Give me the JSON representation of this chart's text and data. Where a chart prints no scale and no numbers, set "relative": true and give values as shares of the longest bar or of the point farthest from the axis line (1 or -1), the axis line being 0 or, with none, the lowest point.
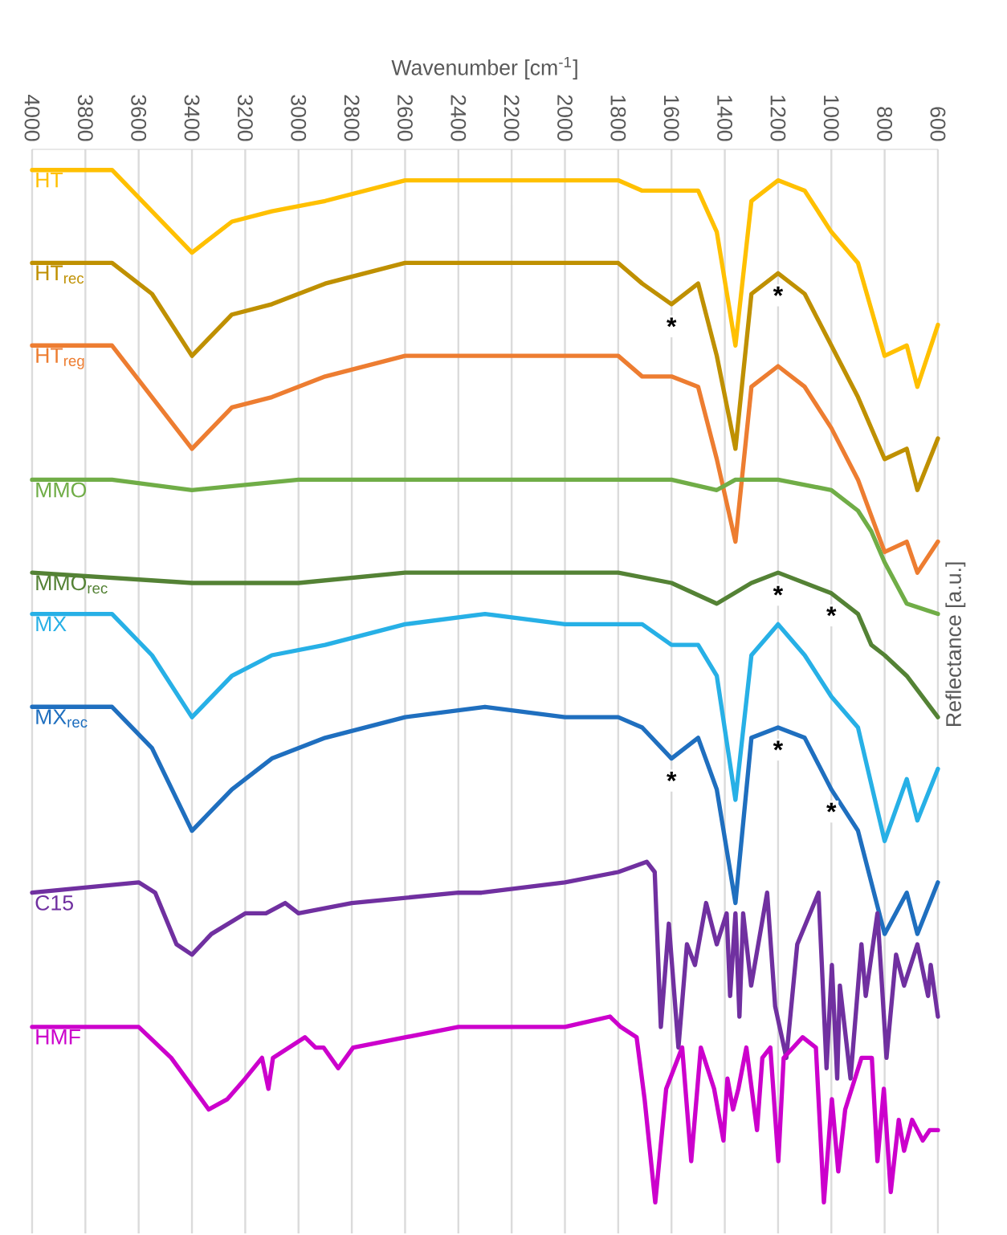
{
  "chart_data": {
    "type": "line",
    "relative": true,
    "xlabel": "Wavenumber [cm$^{-1}$]",
    "ylabel": "Reflectance [a.u.]",
    "xlim": [
      4000,
      600
    ],
    "xticks": [
      4000,
      3800,
      3600,
      3400,
      3200,
      3000,
      2800,
      2600,
      2400,
      2200,
      2000,
      1800,
      1600,
      1400,
      1200,
      1000,
      800,
      600
    ],
    "grid": "x",
    "x": [
      4000,
      3700,
      3550,
      3400,
      3250,
      3100,
      2900,
      2600,
      2300,
      2000,
      1800,
      1710,
      1600,
      1500,
      1430,
      1360,
      1300,
      1200,
      1100,
      1000,
      900,
      800,
      717,
      677,
      600
    ],
    "series": [
      {
        "name": "HT",
        "color": "#ffc000",
        "values": [
          1.0,
          1.0,
          0.96,
          0.92,
          0.95,
          0.96,
          0.97,
          0.99,
          0.99,
          0.99,
          0.99,
          0.98,
          0.98,
          0.98,
          0.94,
          0.83,
          0.97,
          0.99,
          0.98,
          0.94,
          0.91,
          0.82,
          0.83,
          0.79,
          0.85
        ]
      },
      {
        "name": "HT$_{rec}$",
        "color": "#bf9000",
        "values": [
          0.91,
          0.91,
          0.88,
          0.82,
          0.86,
          0.87,
          0.89,
          0.91,
          0.91,
          0.91,
          0.91,
          0.89,
          0.87,
          0.89,
          0.82,
          0.73,
          0.88,
          0.9,
          0.88,
          0.83,
          0.78,
          0.72,
          0.73,
          0.69,
          0.74
        ]
      },
      {
        "name": "HT$_{reg}$",
        "color": "#ed7d31",
        "values": [
          0.83,
          0.83,
          0.78,
          0.73,
          0.77,
          0.78,
          0.8,
          0.82,
          0.82,
          0.82,
          0.82,
          0.8,
          0.8,
          0.79,
          0.72,
          0.64,
          0.79,
          0.81,
          0.79,
          0.75,
          0.7,
          0.63,
          0.64,
          0.61,
          0.64
        ]
      },
      {
        "name": "MMO",
        "color": "#70ad47",
        "x": [
          4000,
          3700,
          3400,
          3000,
          2600,
          2200,
          1800,
          1600,
          1430,
          1360,
          1200,
          1000,
          900,
          850,
          800,
          717,
          600
        ],
        "values": [
          0.7,
          0.7,
          0.69,
          0.7,
          0.7,
          0.7,
          0.7,
          0.7,
          0.69,
          0.7,
          0.7,
          0.69,
          0.67,
          0.65,
          0.62,
          0.58,
          0.57
        ]
      },
      {
        "name": "MMO$_{rec}$",
        "color": "#548235",
        "x": [
          4000,
          3400,
          3000,
          2600,
          2200,
          1800,
          1600,
          1430,
          1300,
          1200,
          1000,
          900,
          850,
          800,
          717,
          600
        ],
        "values": [
          0.61,
          0.6,
          0.6,
          0.61,
          0.61,
          0.61,
          0.6,
          0.58,
          0.6,
          0.61,
          0.59,
          0.57,
          0.54,
          0.53,
          0.51,
          0.47
        ]
      },
      {
        "name": "MX",
        "color": "#27b0e6",
        "values": [
          0.57,
          0.57,
          0.53,
          0.47,
          0.51,
          0.53,
          0.54,
          0.56,
          0.57,
          0.56,
          0.56,
          0.56,
          0.54,
          0.54,
          0.51,
          0.39,
          0.53,
          0.56,
          0.53,
          0.49,
          0.46,
          0.35,
          0.41,
          0.37,
          0.42
        ]
      },
      {
        "name": "MX$_{rec}$",
        "color": "#1f6fbf",
        "values": [
          0.48,
          0.48,
          0.44,
          0.36,
          0.4,
          0.43,
          0.45,
          0.47,
          0.48,
          0.47,
          0.47,
          0.46,
          0.43,
          0.45,
          0.4,
          0.29,
          0.45,
          0.46,
          0.45,
          0.4,
          0.36,
          0.26,
          0.3,
          0.26,
          0.31
        ]
      },
      {
        "name": "C15",
        "color": "#7030a0",
        "x": [
          4000,
          3600,
          3538,
          3458,
          3400,
          3327,
          3200,
          3122,
          3050,
          3000,
          2800,
          2400,
          2313,
          2000,
          1800,
          1693,
          1663,
          1640,
          1610,
          1574,
          1542,
          1512,
          1470,
          1430,
          1393,
          1380,
          1360,
          1345,
          1331,
          1301,
          1241,
          1211,
          1169,
          1128,
          1048,
          1018,
          998,
          978,
          968,
          928,
          887,
          871,
          827,
          793,
          757,
          727,
          677,
          637,
          627,
          600
        ],
        "values": [
          0.3,
          0.31,
          0.3,
          0.25,
          0.24,
          0.26,
          0.28,
          0.28,
          0.29,
          0.28,
          0.29,
          0.3,
          0.3,
          0.31,
          0.32,
          0.33,
          0.32,
          0.17,
          0.27,
          0.15,
          0.25,
          0.23,
          0.29,
          0.25,
          0.28,
          0.2,
          0.28,
          0.18,
          0.28,
          0.21,
          0.3,
          0.19,
          0.14,
          0.25,
          0.3,
          0.13,
          0.23,
          0.12,
          0.21,
          0.12,
          0.25,
          0.2,
          0.28,
          0.14,
          0.24,
          0.21,
          0.25,
          0.2,
          0.23,
          0.18
        ]
      },
      {
        "name": "HMF",
        "color": "#cc00cc",
        "x": [
          4000,
          3600,
          3478,
          3337,
          3267,
          3200,
          3137,
          3113,
          3096,
          2976,
          2936,
          2906,
          2851,
          2795,
          2400,
          2233,
          2000,
          1831,
          1791,
          1731,
          1701,
          1661,
          1620,
          1560,
          1526,
          1490,
          1440,
          1405,
          1390,
          1369,
          1349,
          1319,
          1279,
          1259,
          1229,
          1199,
          1179,
          1108,
          1058,
          1028,
          998,
          974,
          948,
          887,
          848,
          827,
          803,
          777,
          747,
          727,
          697,
          657,
          631,
          600
        ],
        "values": [
          0.17,
          0.17,
          0.14,
          0.09,
          0.1,
          0.12,
          0.14,
          0.11,
          0.14,
          0.16,
          0.15,
          0.15,
          0.13,
          0.15,
          0.17,
          0.17,
          0.17,
          0.18,
          0.17,
          0.16,
          0.1,
          0,
          0.11,
          0.15,
          0.04,
          0.15,
          0.11,
          0.06,
          0.12,
          0.09,
          0.11,
          0.15,
          0.07,
          0.14,
          0.15,
          0.04,
          0.14,
          0.16,
          0.15,
          0,
          0.1,
          0.03,
          0.09,
          0.14,
          0.14,
          0.04,
          0.11,
          0.01,
          0.08,
          0.05,
          0.08,
          0.06,
          0.07,
          0.07
        ]
      }
    ],
    "annotations": [
      {
        "text": "*",
        "x": 1600,
        "y": 0.87
      },
      {
        "text": "*",
        "x": 1200,
        "y": 0.9
      },
      {
        "text": "*",
        "x": 1200,
        "y": 0.61
      },
      {
        "text": "*",
        "x": 1000,
        "y": 0.59
      },
      {
        "text": "*",
        "x": 1600,
        "y": 0.43
      },
      {
        "text": "*",
        "x": 1200,
        "y": 0.46
      },
      {
        "text": "*",
        "x": 1000,
        "y": 0.4
      }
    ]
  }
}
